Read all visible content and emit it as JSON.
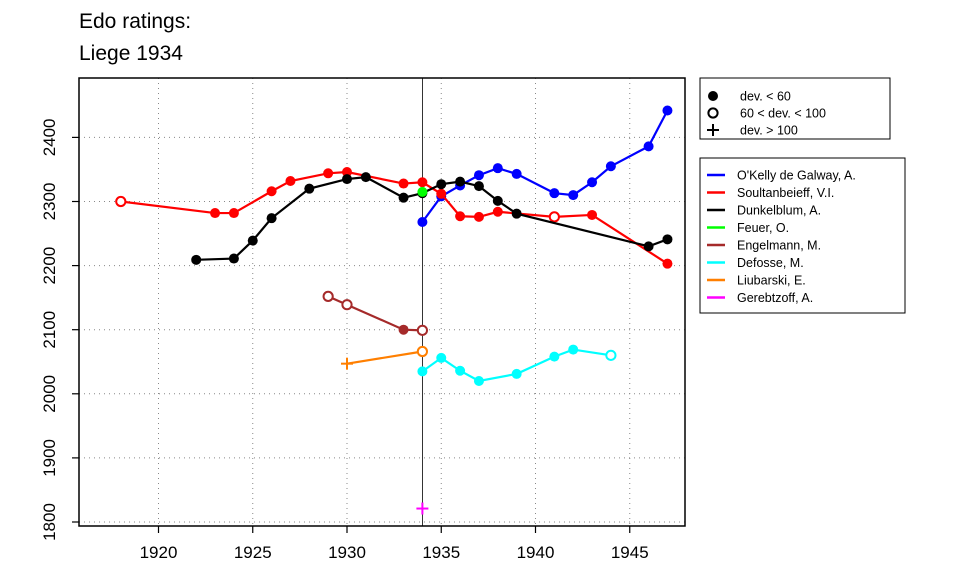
{
  "chart_data": {
    "type": "line",
    "title": "Edo ratings:",
    "subtitle": "Liege 1934",
    "xlabel": "",
    "ylabel": "",
    "xlim": [
      1916,
      1948
    ],
    "ylim": [
      1800,
      2480
    ],
    "x_ticks": [
      1920,
      1925,
      1930,
      1935,
      1940,
      1945
    ],
    "y_ticks": [
      1800,
      1900,
      2000,
      2100,
      2200,
      2300,
      2400
    ],
    "grid": "dotted",
    "reference_line_x": 1934,
    "marker_legend": [
      {
        "symbol": "filled-circle",
        "label": "dev. < 60"
      },
      {
        "symbol": "open-circle",
        "label": "60 < dev. < 100"
      },
      {
        "symbol": "plus",
        "label": "dev. > 100"
      }
    ],
    "series": [
      {
        "name": "O'Kelly de Galway, A.",
        "color": "#0000ff",
        "points": [
          [
            1934,
            2268,
            "f"
          ],
          [
            1935,
            2308,
            "f"
          ],
          [
            1936,
            2325,
            "f"
          ],
          [
            1937,
            2341,
            "f"
          ],
          [
            1938,
            2352,
            "f"
          ],
          [
            1939,
            2343,
            "f"
          ],
          [
            1941,
            2313,
            "f"
          ],
          [
            1942,
            2310,
            "f"
          ],
          [
            1943,
            2330,
            "f"
          ],
          [
            1944,
            2355,
            "f"
          ],
          [
            1946,
            2386,
            "f"
          ],
          [
            1947,
            2442,
            "f"
          ]
        ]
      },
      {
        "name": "Soultanbeieff, V.I.",
        "color": "#ff0000",
        "points": [
          [
            1918,
            2300,
            "o"
          ],
          [
            1923,
            2282,
            "f"
          ],
          [
            1924,
            2282,
            "f"
          ],
          [
            1926,
            2316,
            "f"
          ],
          [
            1927,
            2332,
            "f"
          ],
          [
            1929,
            2344,
            "f"
          ],
          [
            1930,
            2346,
            "f"
          ],
          [
            1933,
            2328,
            "f"
          ],
          [
            1934,
            2330,
            "f"
          ],
          [
            1935,
            2312,
            "f"
          ],
          [
            1936,
            2277,
            "f"
          ],
          [
            1937,
            2276,
            "f"
          ],
          [
            1938,
            2284,
            "f"
          ],
          [
            1941,
            2276,
            "o"
          ],
          [
            1943,
            2279,
            "f"
          ],
          [
            1947,
            2203,
            "f"
          ]
        ]
      },
      {
        "name": "Dunkelblum, A.",
        "color": "#000000",
        "points": [
          [
            1922,
            2209,
            "f"
          ],
          [
            1924,
            2211,
            "f"
          ],
          [
            1925,
            2239,
            "f"
          ],
          [
            1926,
            2274,
            "f"
          ],
          [
            1928,
            2320,
            "f"
          ],
          [
            1930,
            2335,
            "f"
          ],
          [
            1931,
            2338,
            "f"
          ],
          [
            1933,
            2306,
            "f"
          ],
          [
            1934,
            2313,
            "f"
          ],
          [
            1935,
            2327,
            "f"
          ],
          [
            1936,
            2331,
            "f"
          ],
          [
            1937,
            2324,
            "f"
          ],
          [
            1938,
            2301,
            "f"
          ],
          [
            1939,
            2281,
            "f"
          ],
          [
            1946,
            2230,
            "f"
          ],
          [
            1947,
            2241,
            "f"
          ]
        ]
      },
      {
        "name": "Feuer, O.",
        "color": "#00ff00",
        "points": [
          [
            1934,
            2315,
            "f"
          ]
        ]
      },
      {
        "name": "Engelmann, M.",
        "color": "#a52a2a",
        "points": [
          [
            1929,
            2152,
            "o"
          ],
          [
            1930,
            2139,
            "o"
          ],
          [
            1933,
            2100,
            "f"
          ],
          [
            1934,
            2099,
            "o"
          ]
        ]
      },
      {
        "name": "Defosse, M.",
        "color": "#00ffff",
        "points": [
          [
            1934,
            2035,
            "f"
          ],
          [
            1935,
            2056,
            "f"
          ],
          [
            1936,
            2036,
            "f"
          ],
          [
            1937,
            2020,
            "f"
          ],
          [
            1939,
            2031,
            "f"
          ],
          [
            1941,
            2058,
            "f"
          ],
          [
            1942,
            2069,
            "f"
          ],
          [
            1944,
            2060,
            "o"
          ]
        ]
      },
      {
        "name": "Liubarski, E.",
        "color": "#ff7f00",
        "points": [
          [
            1930,
            2047,
            "p"
          ],
          [
            1934,
            2066,
            "o"
          ]
        ]
      },
      {
        "name": "Gerebtzoff, A.",
        "color": "#ff00ff",
        "points": [
          [
            1934,
            1821,
            "p"
          ]
        ]
      }
    ]
  }
}
